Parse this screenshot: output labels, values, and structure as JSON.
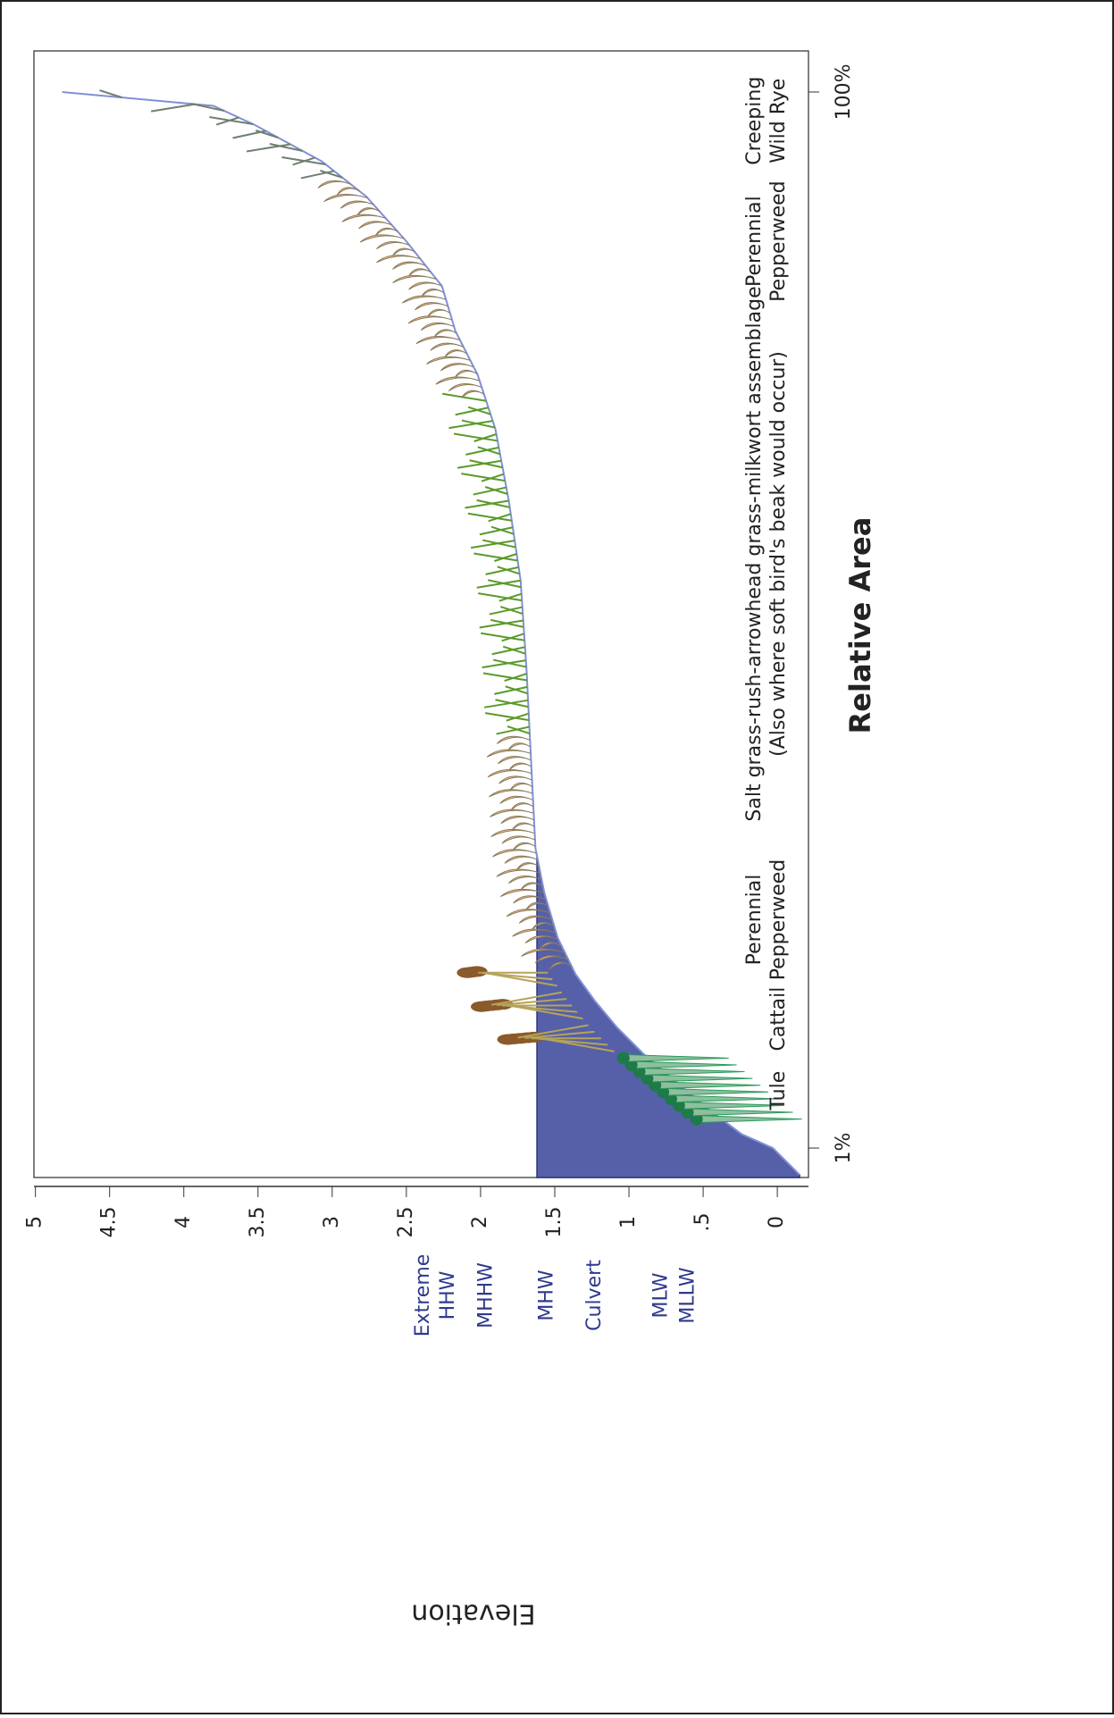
{
  "chart_data": {
    "type": "line",
    "x_label": "Relative Area",
    "y_label": "Elevation",
    "x": [
      -1.5,
      1,
      2.3,
      4.8,
      7.3,
      9.8,
      12.3,
      14.8,
      17.3,
      20.7,
      24.9,
      29.1,
      37.4,
      45.8,
      54.2,
      61.7,
      68.4,
      73.5,
      77.6,
      81.8,
      86.0,
      90.2,
      93.5,
      96.9,
      98.7,
      100
    ],
    "values": [
      -0.15,
      0.03,
      0.24,
      0.48,
      0.69,
      0.9,
      1.08,
      1.23,
      1.36,
      1.48,
      1.57,
      1.63,
      1.66,
      1.69,
      1.73,
      1.81,
      1.9,
      2.02,
      2.17,
      2.26,
      2.5,
      2.77,
      3.07,
      3.52,
      3.8,
      4.82
    ],
    "color": "#8090d8",
    "water_level": 1.62,
    "water_color": "#5560a8",
    "xlim": [
      -1.76,
      103.85
    ],
    "ylim": [
      -0.21,
      5.01
    ],
    "xticks": [
      {
        "value": 1,
        "label": "1%"
      },
      {
        "value": 100,
        "label": "100%"
      }
    ],
    "yticks": [
      0,
      {
        "value": 0.5,
        "label": ".5"
      },
      1,
      1.5,
      2,
      2.5,
      3,
      3.5,
      4,
      4.5,
      5
    ],
    "tide_levels": [
      {
        "lines": [
          "Extreme",
          "HHW"
        ],
        "value": 2.3
      },
      {
        "lines": [
          "MHHW"
        ],
        "value": 1.96
      },
      {
        "lines": [
          "MHW"
        ],
        "value": 1.55
      },
      {
        "lines": [
          "Culvert"
        ],
        "value": 1.23
      },
      {
        "lines": [
          "MLW"
        ],
        "value": 0.78
      },
      {
        "lines": [
          "MLLW"
        ],
        "value": 0.6
      }
    ],
    "zones": [
      {
        "lines": [
          "Tule"
        ],
        "x": 6.4,
        "icon_color": "#1f7a4a"
      },
      {
        "lines": [
          "Cattail"
        ],
        "x": 13.1,
        "icon_color": "#8a5a2b"
      },
      {
        "lines": [
          "Perennial",
          "Pepperweed"
        ],
        "x": 22.4,
        "icon_color": "#f7c08e"
      },
      {
        "lines": [
          "Salt grass-rush-arrowhead grass-milkwort assemblage",
          "(Also where soft bird's beak would occur)"
        ],
        "x": 56.7,
        "icon_color": "#5a9a2a"
      },
      {
        "lines": [
          "Perennial",
          "Pepperweed"
        ],
        "x": 86.0,
        "icon_color": "#f7c08e"
      },
      {
        "lines": [
          "Creeping",
          "Wild Rye"
        ],
        "x": 97.3,
        "icon_color": "#6f7f6f"
      }
    ]
  }
}
